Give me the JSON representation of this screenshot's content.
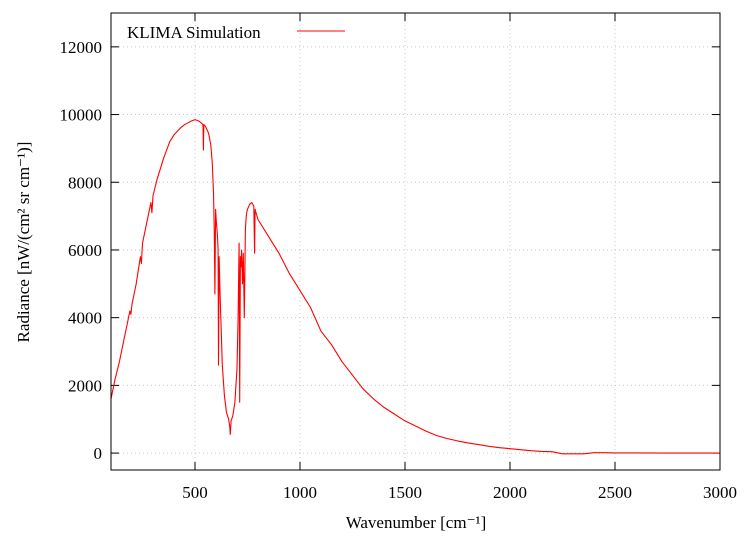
{
  "chart_data": {
    "type": "line",
    "title": "",
    "xlabel": "Wavenumber [cm⁻¹]",
    "ylabel": "Radiance [nW/(cm² sr cm⁻¹)]",
    "xlim": [
      100,
      3000
    ],
    "ylim": [
      -500,
      13000
    ],
    "xticks": [
      500,
      1000,
      1500,
      2000,
      2500,
      3000
    ],
    "yticks": [
      0,
      2000,
      4000,
      6000,
      8000,
      10000,
      12000
    ],
    "grid": true,
    "legend_position": "top-left",
    "series": [
      {
        "name": "KLIMA Simulation",
        "color": "#ff0000",
        "x": [
          100,
          120,
          140,
          160,
          180,
          190,
          195,
          200,
          220,
          240,
          245,
          250,
          270,
          290,
          295,
          300,
          320,
          350,
          380,
          400,
          430,
          450,
          480,
          500,
          520,
          530,
          538,
          540,
          542,
          550,
          565,
          575,
          582,
          588,
          592,
          595,
          598,
          602,
          606,
          610,
          612,
          615,
          618,
          622,
          630,
          640,
          650,
          660,
          665,
          668,
          672,
          680,
          690,
          700,
          705,
          710,
          713,
          716,
          719,
          722,
          726,
          730,
          735,
          740,
          743,
          746,
          750,
          760,
          770,
          780,
          784,
          786,
          788,
          800,
          850,
          900,
          950,
          1000,
          1050,
          1100,
          1150,
          1200,
          1250,
          1300,
          1350,
          1400,
          1450,
          1500,
          1550,
          1600,
          1650,
          1700,
          1750,
          1800,
          1850,
          1900,
          1950,
          2000,
          2050,
          2100,
          2150,
          2200,
          2250,
          2300,
          2350,
          2400,
          2450,
          2500,
          2750,
          3000
        ],
        "y": [
          1600,
          2200,
          2700,
          3300,
          3900,
          4200,
          4100,
          4400,
          5000,
          5800,
          5600,
          6200,
          6800,
          7400,
          7100,
          7600,
          8100,
          8700,
          9200,
          9400,
          9600,
          9700,
          9800,
          9850,
          9800,
          9750,
          9700,
          8950,
          9700,
          9650,
          9450,
          9100,
          8600,
          7700,
          6500,
          4700,
          7200,
          6800,
          6500,
          6000,
          2600,
          5800,
          5000,
          4200,
          2600,
          1700,
          1200,
          1000,
          800,
          550,
          950,
          1100,
          1500,
          2500,
          4000,
          6200,
          1500,
          5800,
          5500,
          6000,
          5000,
          5900,
          4000,
          6600,
          6900,
          7100,
          7200,
          7350,
          7400,
          7300,
          5900,
          7200,
          7150,
          6900,
          6400,
          5900,
          5300,
          4800,
          4300,
          3600,
          3200,
          2700,
          2300,
          1900,
          1600,
          1350,
          1150,
          950,
          800,
          650,
          520,
          430,
          360,
          300,
          250,
          200,
          160,
          130,
          100,
          70,
          50,
          40,
          -20,
          -20,
          -20,
          10,
          10,
          5,
          0,
          0
        ]
      }
    ]
  }
}
